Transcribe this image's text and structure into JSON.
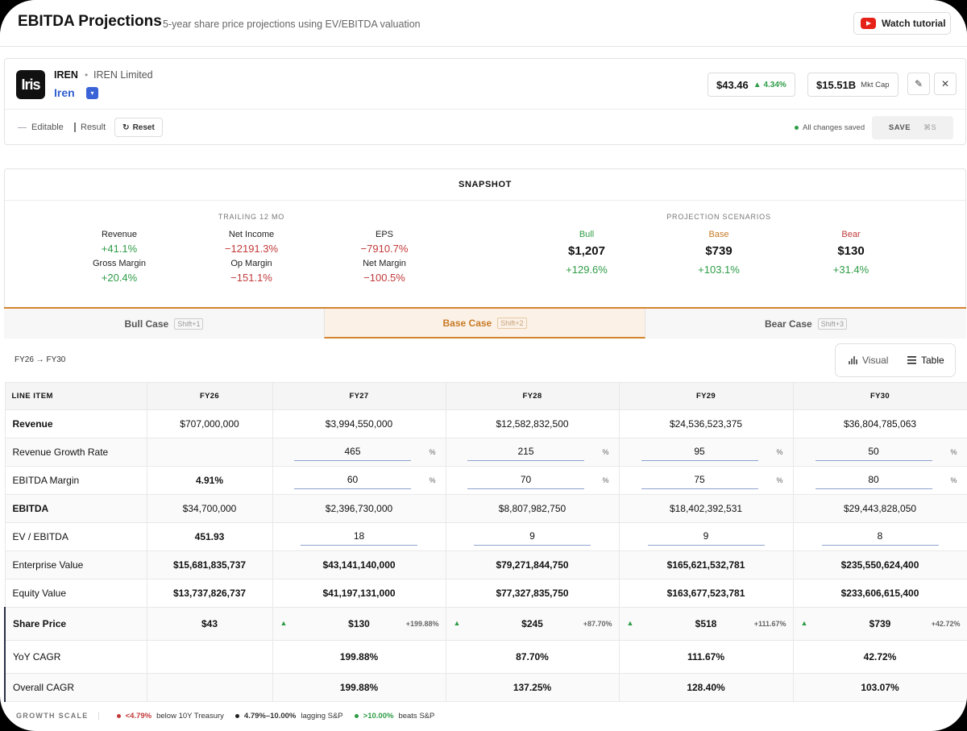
{
  "header": {
    "title": "EBITDA Projections",
    "separator": "·",
    "subtitle": "5-year share price projections using EV/EBITDA valuation",
    "tutorial_label": "Watch tutorial"
  },
  "company": {
    "logo_text": "Iris",
    "ticker": "IREN",
    "separator": "•",
    "name": "IREN Limited",
    "short_name": "Iren",
    "dropdown_icon": "▾",
    "price": "$43.46",
    "price_change": "▲ 4.34%",
    "market_cap": "$15.51B",
    "market_cap_label": "Mkt Cap",
    "edit_icon": "✎",
    "close_icon": "✕",
    "legend_editable": "Editable",
    "legend_result": "Result",
    "reset_label": "Reset",
    "reset_icon": "↻",
    "saved_status": "All changes saved",
    "save_label": "SAVE",
    "save_shortcut": "⌘S"
  },
  "snapshot": {
    "title": "SNAPSHOT",
    "trailing_header": "TRAILING 12 MO",
    "projection_header": "PROJECTION SCENARIOS",
    "metrics": [
      {
        "label": "Revenue",
        "value": "+41.1%"
      },
      {
        "label": "Net Income",
        "value": "−12191.3%"
      },
      {
        "label": "EPS",
        "value": "−7910.7%"
      },
      {
        "label": "Gross Margin",
        "value": "+20.4%"
      },
      {
        "label": "Op Margin",
        "value": "−151.1%"
      },
      {
        "label": "Net Margin",
        "value": "−100.5%"
      }
    ],
    "scenarios": [
      {
        "label": "Bull",
        "price": "$1,207",
        "change": "+129.6%",
        "color": "#2e9c46"
      },
      {
        "label": "Base",
        "price": "$739",
        "change": "+103.1%",
        "color": "#c87a27"
      },
      {
        "label": "Bear",
        "price": "$130",
        "change": "+31.4%",
        "color": "#c23a3a"
      }
    ]
  },
  "tabs": [
    {
      "label": "Bull Case",
      "shortcut": "Shift+1"
    },
    {
      "label": "Base Case",
      "shortcut": "Shift+2"
    },
    {
      "label": "Bear Case",
      "shortcut": "Shift+3"
    }
  ],
  "view": {
    "range": "FY26 → FY30",
    "visual_label": "Visual",
    "table_label": "Table"
  },
  "table": {
    "headers": [
      "LINE ITEM",
      "FY26",
      "FY27",
      "FY28",
      "FY29",
      "FY30"
    ],
    "revenue": {
      "label": "Revenue",
      "values": [
        "$707,000,000",
        "$3,994,550,000",
        "$12,582,832,500",
        "$24,536,523,375",
        "$36,804,785,063"
      ]
    },
    "growth": {
      "label": "Revenue Growth Rate",
      "values": [
        "",
        "465",
        "215",
        "95",
        "50"
      ],
      "unit": "%"
    },
    "margin": {
      "label": "EBITDA Margin",
      "values": [
        "4.91%",
        "60",
        "70",
        "75",
        "80"
      ],
      "unit": "%"
    },
    "ebitda": {
      "label": "EBITDA",
      "values": [
        "$34,700,000",
        "$2,396,730,000",
        "$8,807,982,750",
        "$18,402,392,531",
        "$29,443,828,050"
      ]
    },
    "ev_ebitda": {
      "label": "EV / EBITDA",
      "values": [
        "451.93",
        "18",
        "9",
        "9",
        "8"
      ]
    },
    "ev": {
      "label": "Enterprise Value",
      "values": [
        "$15,681,835,737",
        "$43,141,140,000",
        "$79,271,844,750",
        "$165,621,532,781",
        "$235,550,624,400"
      ]
    },
    "equity": {
      "label": "Equity Value",
      "values": [
        "$13,737,826,737",
        "$41,197,131,000",
        "$77,327,835,750",
        "$163,677,523,781",
        "$233,606,615,400"
      ]
    },
    "share_price": {
      "label": "Share Price",
      "values": [
        "$43",
        "$130",
        "$245",
        "$518",
        "$739"
      ],
      "deltas": [
        "",
        "+199.88%",
        "+87.70%",
        "+111.67%",
        "+42.72%"
      ],
      "arrow": "▲"
    },
    "yoy": {
      "label": "YoY CAGR",
      "values": [
        "",
        "199.88%",
        "87.70%",
        "111.67%",
        "42.72%"
      ]
    },
    "overall": {
      "label": "Overall CAGR",
      "values": [
        "",
        "199.88%",
        "137.25%",
        "128.40%",
        "103.07%"
      ]
    }
  },
  "growth_scale": {
    "label": "GROWTH SCALE",
    "items": [
      {
        "range": "<4.79%",
        "desc": "below 10Y Treasury",
        "color": "#c23a3a"
      },
      {
        "range": "4.79%–10.00%",
        "desc": "lagging S&P",
        "color": "#222222"
      },
      {
        "range": ">10.00%",
        "desc": "beats S&P",
        "color": "#2e9c46"
      }
    ]
  }
}
